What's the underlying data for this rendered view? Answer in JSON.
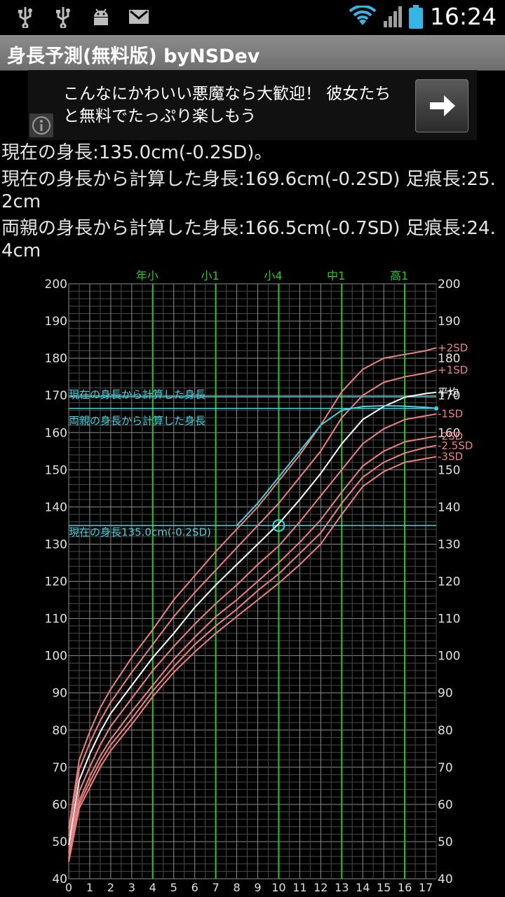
{
  "status_bar": {
    "time": "16:24",
    "left_icons": [
      "usb-icon",
      "usb-icon",
      "android-debug-icon",
      "gmail-icon"
    ],
    "right_icons": [
      "wifi-icon",
      "signal-icon",
      "battery-icon"
    ]
  },
  "app": {
    "title": "身長予測(無料版) byNSDev"
  },
  "ad": {
    "text": "こんなにかわいい悪魔なら大歓迎！ 彼女たちと無料でたっぷり楽しもう",
    "info_icon": "info-icon",
    "button_icon": "arrow-right-icon"
  },
  "results": {
    "current_height": "現在の身長:135.0cm(-0.2SD)。",
    "predicted_from_current": "現在の身長から計算した身長:169.6cm(-0.2SD) 足痕長:25.2cm",
    "predicted_from_parents": "両親の身長から計算した身長:166.5cm(-0.7SD) 足痕長:24.4cm"
  },
  "chart_data": {
    "type": "line",
    "xlim": [
      0,
      17.5
    ],
    "ylim": [
      40,
      200
    ],
    "grid": true,
    "x_ticks": [
      0,
      1,
      2,
      3,
      4,
      5,
      6,
      7,
      8,
      9,
      10,
      11,
      12,
      13,
      14,
      15,
      16,
      17
    ],
    "y_ticks": [
      40,
      50,
      60,
      70,
      80,
      90,
      100,
      110,
      120,
      130,
      140,
      150,
      160,
      170,
      180,
      190,
      200
    ],
    "school_markers": [
      {
        "label": "年小",
        "x": 4
      },
      {
        "label": "小1",
        "x": 7
      },
      {
        "label": "小4",
        "x": 10
      },
      {
        "label": "中1",
        "x": 13
      },
      {
        "label": "高1",
        "x": 16
      }
    ],
    "x": [
      0,
      0.5,
      1,
      1.5,
      2,
      3,
      4,
      5,
      6,
      7,
      8,
      9,
      10,
      11,
      12,
      13,
      14,
      15,
      16,
      17,
      17.5
    ],
    "series": [
      {
        "name": "+2SD",
        "color": "#f08080",
        "values": [
          53.5,
          72,
          79.5,
          86,
          91,
          99.5,
          107,
          115,
          121.5,
          128,
          134,
          140,
          147,
          154,
          162,
          171,
          177,
          180,
          181,
          182,
          182.8
        ]
      },
      {
        "name": "+1SD",
        "color": "#f08080",
        "values": [
          51.5,
          69.5,
          76.5,
          82.5,
          87.5,
          95.5,
          103,
          110.5,
          117,
          123,
          129,
          135,
          141,
          148,
          155,
          164,
          170,
          173.5,
          175,
          176,
          176.8
        ]
      },
      {
        "name": "平均",
        "color": "#ffffff",
        "values": [
          49,
          66.5,
          73.5,
          79.5,
          84.5,
          92,
          99.5,
          106,
          113,
          119,
          124.5,
          130,
          135.5,
          142,
          149,
          157,
          163.5,
          167,
          169.5,
          170.5,
          170.8
        ]
      },
      {
        "name": "-1SD",
        "color": "#f08080",
        "values": [
          47,
          63.5,
          70,
          76,
          81,
          88.5,
          96,
          102.5,
          108.5,
          114,
          119,
          124.5,
          129.5,
          136,
          143,
          150,
          157,
          161,
          163.5,
          164.5,
          165
        ]
      },
      {
        "name": "-2SD",
        "color": "#f08080",
        "values": [
          45.5,
          61,
          67.5,
          73,
          77.5,
          85,
          92,
          99,
          105,
          110.5,
          115,
          120,
          125,
          130.5,
          136.5,
          144,
          151,
          155,
          157.5,
          158.5,
          159
        ]
      },
      {
        "name": "-2.5SD",
        "color": "#f08080",
        "values": [
          45,
          60,
          66,
          71.5,
          76,
          83,
          90.5,
          97,
          103,
          108,
          112.5,
          117.5,
          122,
          127.5,
          133,
          141,
          148,
          152,
          154.5,
          156,
          156.5
        ]
      },
      {
        "name": "-3SD",
        "color": "#f08080",
        "values": [
          44.5,
          59,
          64.5,
          70,
          74.5,
          81.5,
          89,
          95.5,
          101,
          106,
          110.5,
          115,
          119.5,
          124.5,
          130,
          138,
          145.5,
          149.5,
          152,
          153,
          153.5
        ]
      },
      {
        "name": "",
        "color": "#3fd5e0",
        "values": [
          null,
          null,
          null,
          null,
          null,
          null,
          null,
          null,
          null,
          null,
          135,
          141,
          148,
          155,
          162,
          166,
          167,
          167.2,
          167.1,
          166.8,
          166.5
        ]
      }
    ],
    "reference_lines": [
      {
        "label": "現在の身長から計算した身長",
        "y": 169.6,
        "label_y": 170
      },
      {
        "label": "両親の身長から計算した身長",
        "y": 166.5,
        "label_y": 163
      },
      {
        "label": "現在の身長135.0cm(-0.2SD)",
        "y": 135,
        "label_y": 133
      }
    ],
    "current_point": {
      "x": 10,
      "y": 135
    }
  }
}
